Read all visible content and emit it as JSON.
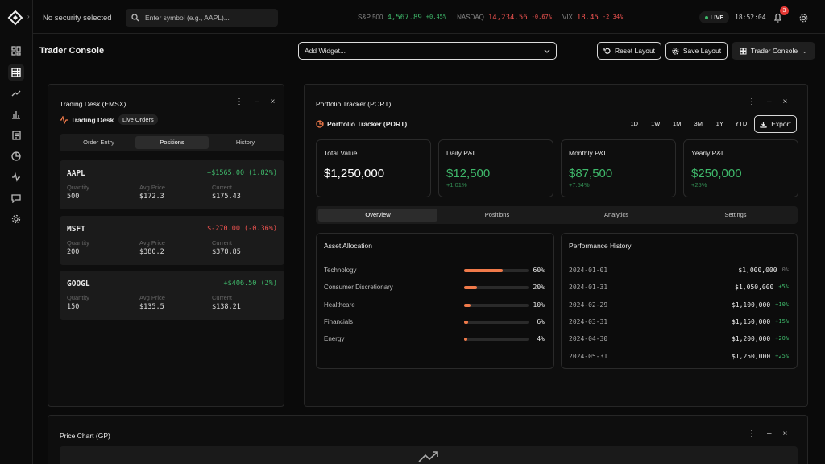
{
  "topbar": {
    "security": "No security selected",
    "search_placeholder": "Enter symbol (e.g., AAPL)...",
    "tickers": [
      {
        "name": "S&P 500",
        "value": "4,567.89",
        "change": "+0.45%"
      },
      {
        "name": "NASDAQ",
        "value": "14,234.56",
        "change": "-0.67%"
      },
      {
        "name": "VIX",
        "value": "18.45",
        "change": "-2.34%"
      }
    ],
    "status": "LIVE",
    "time": "18:52:04",
    "notifications": "3"
  },
  "header": {
    "title": "Trader Console",
    "add_widget": "Add Widget...",
    "reset": "Reset Layout",
    "save": "Save Layout",
    "layout": "Trader Console"
  },
  "trading_desk": {
    "title": "Trading Desk (EMSX)",
    "subtitle": "Trading Desk",
    "badge": "Live Orders",
    "tabs": [
      "Order Entry",
      "Positions",
      "History"
    ],
    "columns": [
      "Quantity",
      "Avg Price",
      "Current"
    ],
    "positions": [
      {
        "symbol": "AAPL",
        "pnl": "+$1565.00 (1.82%)",
        "quantity": "500",
        "avg": "$172.3",
        "current": "$175.43"
      },
      {
        "symbol": "MSFT",
        "pnl": "$-270.00 (-0.36%)",
        "quantity": "200",
        "avg": "$380.2",
        "current": "$378.85"
      },
      {
        "symbol": "GOOGL",
        "pnl": "+$406.50 (2%)",
        "quantity": "150",
        "avg": "$135.5",
        "current": "$138.21"
      }
    ]
  },
  "portfolio": {
    "title": "Portfolio Tracker (PORT)",
    "subtitle": "Portfolio Tracker (PORT)",
    "ranges": [
      "1D",
      "1W",
      "1M",
      "3M",
      "1Y",
      "YTD"
    ],
    "export": "Export",
    "cards": [
      {
        "label": "Total Value",
        "value": "$1,250,000"
      },
      {
        "label": "Daily P&L",
        "value": "$12,500",
        "change": "+1.01%"
      },
      {
        "label": "Monthly P&L",
        "value": "$87,500",
        "change": "+7.54%"
      },
      {
        "label": "Yearly P&L",
        "value": "$250,000",
        "change": "+25%"
      }
    ],
    "tabs": [
      "Overview",
      "Positions",
      "Analytics",
      "Settings"
    ],
    "allocation": {
      "title": "Asset Allocation",
      "items": [
        {
          "name": "Technology",
          "value": 60,
          "label": "60%"
        },
        {
          "name": "Consumer Discretionary",
          "value": 20,
          "label": "20%"
        },
        {
          "name": "Healthcare",
          "value": 10,
          "label": "10%"
        },
        {
          "name": "Financials",
          "value": 6,
          "label": "6%"
        },
        {
          "name": "Energy",
          "value": 4,
          "label": "4%"
        }
      ]
    },
    "history": {
      "title": "Performance History",
      "rows": [
        {
          "date": "2024-01-01",
          "value": "$1,000,000",
          "change": "0%"
        },
        {
          "date": "2024-01-31",
          "value": "$1,050,000",
          "change": "+5%"
        },
        {
          "date": "2024-02-29",
          "value": "$1,100,000",
          "change": "+10%"
        },
        {
          "date": "2024-03-31",
          "value": "$1,150,000",
          "change": "+15%"
        },
        {
          "date": "2024-04-30",
          "value": "$1,200,000",
          "change": "+20%"
        },
        {
          "date": "2024-05-31",
          "value": "$1,250,000",
          "change": "+25%"
        }
      ]
    }
  },
  "price_chart": {
    "title": "Price Chart (GP)"
  }
}
